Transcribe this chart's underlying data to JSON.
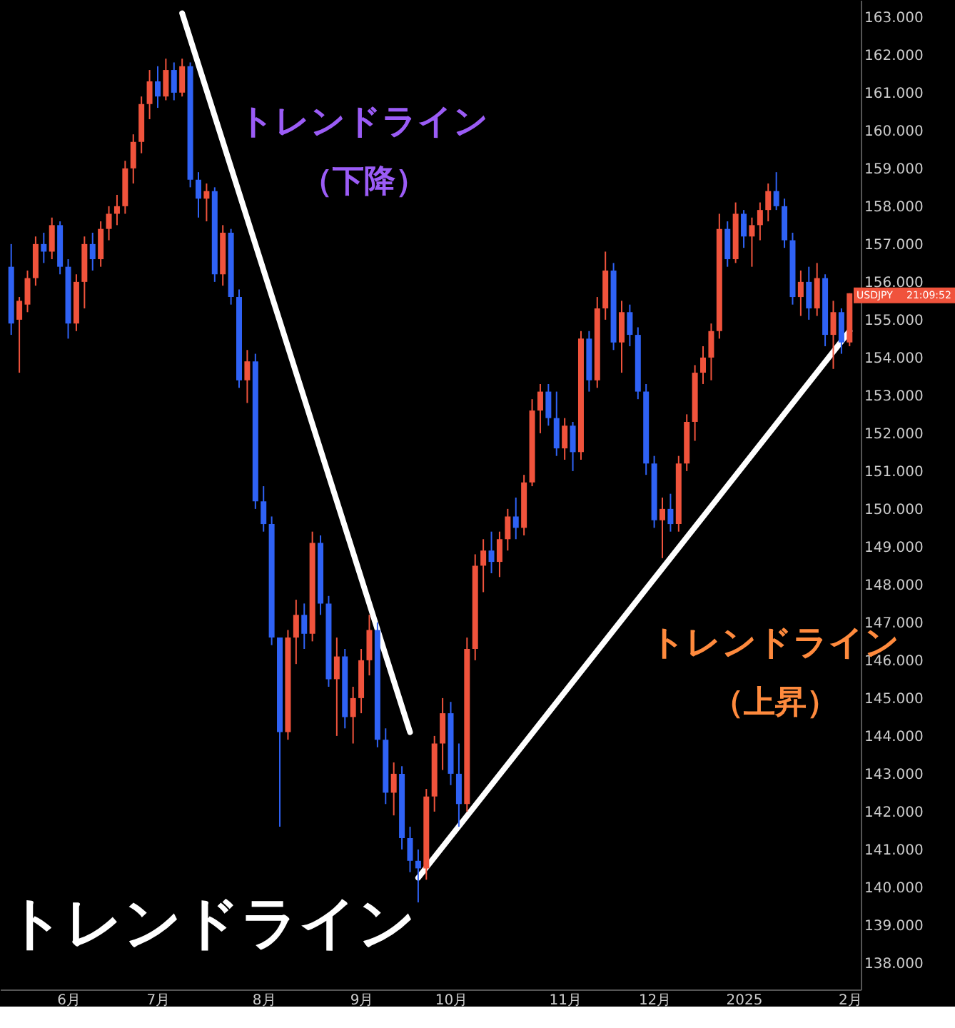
{
  "chart_data": {
    "type": "candlestick",
    "categories": [
      null,
      null,
      null,
      null,
      null,
      null,
      null,
      "6月",
      null,
      null,
      null,
      null,
      null,
      null,
      null,
      null,
      null,
      null,
      "7月",
      null,
      null,
      null,
      null,
      null,
      null,
      null,
      null,
      null,
      null,
      null,
      null,
      "8月",
      null,
      null,
      null,
      null,
      null,
      null,
      null,
      null,
      null,
      null,
      null,
      "9月",
      null,
      null,
      null,
      null,
      null,
      null,
      null,
      null,
      null,
      null,
      "10月",
      null,
      null,
      null,
      null,
      null,
      null,
      null,
      null,
      null,
      null,
      null,
      null,
      null,
      "11月",
      null,
      null,
      null,
      null,
      null,
      null,
      null,
      null,
      null,
      null,
      "12月",
      null,
      null,
      null,
      null,
      null,
      null,
      null,
      null,
      null,
      null,
      "2025",
      null,
      null,
      null,
      null,
      null,
      null,
      null,
      null,
      null,
      null,
      null,
      null,
      "2月"
    ],
    "ohlc": [
      [
        156.4,
        157.0,
        154.6,
        154.9
      ],
      [
        155.0,
        155.6,
        153.6,
        155.5
      ],
      [
        155.4,
        156.3,
        155.2,
        156.1
      ],
      [
        156.1,
        157.2,
        155.9,
        157.0
      ],
      [
        157.0,
        157.3,
        156.5,
        156.8
      ],
      [
        156.8,
        157.7,
        156.6,
        157.5
      ],
      [
        157.5,
        157.6,
        156.2,
        156.4
      ],
      [
        156.4,
        156.6,
        154.5,
        154.9
      ],
      [
        154.9,
        156.2,
        154.7,
        156.0
      ],
      [
        156.0,
        157.2,
        155.3,
        157.0
      ],
      [
        157.0,
        157.3,
        156.3,
        156.6
      ],
      [
        156.6,
        157.6,
        156.4,
        157.4
      ],
      [
        157.4,
        158.0,
        157.1,
        157.8
      ],
      [
        157.8,
        158.3,
        157.5,
        158.0
      ],
      [
        158.0,
        159.2,
        157.8,
        159.0
      ],
      [
        159.0,
        159.9,
        158.6,
        159.7
      ],
      [
        159.7,
        160.9,
        159.4,
        160.7
      ],
      [
        160.7,
        161.6,
        160.3,
        161.3
      ],
      [
        161.3,
        161.7,
        160.6,
        160.9
      ],
      [
        160.9,
        161.9,
        160.8,
        161.6
      ],
      [
        161.6,
        161.8,
        160.8,
        161.0
      ],
      [
        161.0,
        161.9,
        160.9,
        161.7
      ],
      [
        161.7,
        161.8,
        158.5,
        158.7
      ],
      [
        158.7,
        158.9,
        157.7,
        158.2
      ],
      [
        158.2,
        158.6,
        157.6,
        158.4
      ],
      [
        158.4,
        158.5,
        156.0,
        156.2
      ],
      [
        156.2,
        157.5,
        155.9,
        157.3
      ],
      [
        157.3,
        157.4,
        155.4,
        155.6
      ],
      [
        155.6,
        155.8,
        153.2,
        153.4
      ],
      [
        153.4,
        154.2,
        152.8,
        153.9
      ],
      [
        153.9,
        154.1,
        150.0,
        150.2
      ],
      [
        150.2,
        150.6,
        149.4,
        149.6
      ],
      [
        149.6,
        149.8,
        146.4,
        146.6
      ],
      [
        146.6,
        146.6,
        141.6,
        144.1
      ],
      [
        144.1,
        146.8,
        143.9,
        146.6
      ],
      [
        146.6,
        147.6,
        145.9,
        147.2
      ],
      [
        147.2,
        147.5,
        146.3,
        146.7
      ],
      [
        146.7,
        149.4,
        146.5,
        149.1
      ],
      [
        149.1,
        149.3,
        147.2,
        147.5
      ],
      [
        147.5,
        147.7,
        145.3,
        145.5
      ],
      [
        145.5,
        146.6,
        144.0,
        146.1
      ],
      [
        146.1,
        146.3,
        144.2,
        144.5
      ],
      [
        144.5,
        145.3,
        143.8,
        145.0
      ],
      [
        145.0,
        146.3,
        144.6,
        146.0
      ],
      [
        146.0,
        147.2,
        145.6,
        146.8
      ],
      [
        146.8,
        147.0,
        143.7,
        143.9
      ],
      [
        143.9,
        144.2,
        142.2,
        142.5
      ],
      [
        142.5,
        143.3,
        141.9,
        143.0
      ],
      [
        143.0,
        143.2,
        141.0,
        141.3
      ],
      [
        141.3,
        141.6,
        140.4,
        140.7
      ],
      [
        140.7,
        141.0,
        139.6,
        140.5
      ],
      [
        140.5,
        142.6,
        140.2,
        142.4
      ],
      [
        142.4,
        144.0,
        142.0,
        143.8
      ],
      [
        143.8,
        145.0,
        143.1,
        144.6
      ],
      [
        144.6,
        144.9,
        142.7,
        143.0
      ],
      [
        143.0,
        143.8,
        141.6,
        142.2
      ],
      [
        142.2,
        146.6,
        142.0,
        146.3
      ],
      [
        146.3,
        148.8,
        146.0,
        148.5
      ],
      [
        148.5,
        149.2,
        147.8,
        148.9
      ],
      [
        148.9,
        149.4,
        148.3,
        148.6
      ],
      [
        148.6,
        149.4,
        148.2,
        149.2
      ],
      [
        149.2,
        150.0,
        148.9,
        149.8
      ],
      [
        149.8,
        150.3,
        149.2,
        149.5
      ],
      [
        149.5,
        150.9,
        149.3,
        150.7
      ],
      [
        150.7,
        152.9,
        150.6,
        152.6
      ],
      [
        152.6,
        153.3,
        152.0,
        153.1
      ],
      [
        153.1,
        153.3,
        152.2,
        152.4
      ],
      [
        152.4,
        153.1,
        151.4,
        151.6
      ],
      [
        151.6,
        152.4,
        151.3,
        152.2
      ],
      [
        152.2,
        152.3,
        151.0,
        151.5
      ],
      [
        151.5,
        154.7,
        151.3,
        154.5
      ],
      [
        154.5,
        154.7,
        153.1,
        153.4
      ],
      [
        153.4,
        155.6,
        153.2,
        155.3
      ],
      [
        155.3,
        156.8,
        155.0,
        156.3
      ],
      [
        156.3,
        156.5,
        154.2,
        154.4
      ],
      [
        154.4,
        155.5,
        153.6,
        155.2
      ],
      [
        155.2,
        155.4,
        154.3,
        154.6
      ],
      [
        154.6,
        154.8,
        152.9,
        153.1
      ],
      [
        153.1,
        153.3,
        150.9,
        151.2
      ],
      [
        151.2,
        151.4,
        149.5,
        149.7
      ],
      [
        149.7,
        150.3,
        148.7,
        150.0
      ],
      [
        150.0,
        150.4,
        149.4,
        149.6
      ],
      [
        149.6,
        151.4,
        149.4,
        151.2
      ],
      [
        151.2,
        152.5,
        151.0,
        152.3
      ],
      [
        152.3,
        153.8,
        151.8,
        153.6
      ],
      [
        153.6,
        154.3,
        153.3,
        154.0
      ],
      [
        154.0,
        154.9,
        153.4,
        154.7
      ],
      [
        154.7,
        157.8,
        154.5,
        157.4
      ],
      [
        157.4,
        157.6,
        156.4,
        156.6
      ],
      [
        156.6,
        158.1,
        156.5,
        157.8
      ],
      [
        157.8,
        157.9,
        156.9,
        157.2
      ],
      [
        157.2,
        157.7,
        156.4,
        157.5
      ],
      [
        157.5,
        158.1,
        157.1,
        157.9
      ],
      [
        157.9,
        158.6,
        157.6,
        158.4
      ],
      [
        158.4,
        158.9,
        157.9,
        158.0
      ],
      [
        158.0,
        158.2,
        156.9,
        157.1
      ],
      [
        157.1,
        157.3,
        155.4,
        155.6
      ],
      [
        155.6,
        156.3,
        155.1,
        156.0
      ],
      [
        156.0,
        156.4,
        155.0,
        155.3
      ],
      [
        155.3,
        156.5,
        155.1,
        156.1
      ],
      [
        156.1,
        156.2,
        154.3,
        154.6
      ],
      [
        154.6,
        155.5,
        153.7,
        155.2
      ],
      [
        155.2,
        155.3,
        154.1,
        154.4
      ],
      [
        154.4,
        155.7,
        154.3,
        155.7
      ]
    ],
    "colors": [
      "#2f62f5",
      "#f0533c",
      "#f0533c",
      "#f0533c",
      "#2f62f5",
      "#f0533c",
      "#2f62f5",
      "#2f62f5",
      "#f0533c",
      "#f0533c",
      "#2f62f5",
      "#f0533c",
      "#f0533c",
      "#f0533c",
      "#f0533c",
      "#f0533c",
      "#f0533c",
      "#f0533c",
      "#2f62f5",
      "#f0533c",
      "#2f62f5",
      "#f0533c",
      "#2f62f5",
      "#2f62f5",
      "#f0533c",
      "#2f62f5",
      "#f0533c",
      "#2f62f5",
      "#2f62f5",
      "#f0533c",
      "#2f62f5",
      "#2f62f5",
      "#2f62f5",
      "#2f62f5",
      "#f0533c",
      "#f0533c",
      "#2f62f5",
      "#f0533c",
      "#2f62f5",
      "#2f62f5",
      "#f0533c",
      "#2f62f5",
      "#f0533c",
      "#f0533c",
      "#f0533c",
      "#2f62f5",
      "#2f62f5",
      "#f0533c",
      "#2f62f5",
      "#2f62f5",
      "#2f62f5",
      "#f0533c",
      "#f0533c",
      "#f0533c",
      "#2f62f5",
      "#2f62f5",
      "#f0533c",
      "#f0533c",
      "#f0533c",
      "#2f62f5",
      "#f0533c",
      "#f0533c",
      "#2f62f5",
      "#f0533c",
      "#f0533c",
      "#f0533c",
      "#2f62f5",
      "#2f62f5",
      "#f0533c",
      "#2f62f5",
      "#f0533c",
      "#2f62f5",
      "#f0533c",
      "#f0533c",
      "#2f62f5",
      "#f0533c",
      "#2f62f5",
      "#2f62f5",
      "#2f62f5",
      "#2f62f5",
      "#f0533c",
      "#2f62f5",
      "#f0533c",
      "#f0533c",
      "#f0533c",
      "#f0533c",
      "#f0533c",
      "#f0533c",
      "#2f62f5",
      "#f0533c",
      "#2f62f5",
      "#f0533c",
      "#f0533c",
      "#f0533c",
      "#2f62f5",
      "#2f62f5",
      "#2f62f5",
      "#f0533c",
      "#2f62f5",
      "#f0533c",
      "#2f62f5",
      "#f0533c",
      "#2f62f5",
      "#f0533c"
    ],
    "series": [
      {
        "type": "line",
        "color": "#ffffff",
        "values": [
          null,
          null,
          null,
          null,
          null,
          null,
          null,
          null,
          null,
          null,
          null,
          null,
          null,
          null,
          null,
          null,
          null,
          null,
          null,
          null,
          null,
          163.1,
          null,
          null,
          null,
          null,
          null,
          null,
          null,
          null,
          null,
          null,
          null,
          null,
          null,
          null,
          null,
          null,
          null,
          null,
          null,
          null,
          null,
          null,
          null,
          null,
          null,
          null,
          null,
          144.1,
          null,
          null,
          null,
          null,
          null,
          null,
          null,
          null,
          null,
          null,
          null,
          null,
          null,
          null,
          null,
          null,
          null,
          null,
          null,
          null,
          null,
          null,
          null,
          null,
          null,
          null,
          null,
          null,
          null,
          null,
          null,
          null,
          null,
          null,
          null,
          null,
          null,
          null,
          null,
          null,
          null,
          null,
          null,
          null,
          null,
          null,
          null,
          null,
          null,
          null,
          null,
          null,
          null,
          null
        ]
      },
      {
        "type": "line",
        "color": "#ffffff",
        "values": [
          null,
          null,
          null,
          null,
          null,
          null,
          null,
          null,
          null,
          null,
          null,
          null,
          null,
          null,
          null,
          null,
          null,
          null,
          null,
          null,
          null,
          null,
          null,
          null,
          null,
          null,
          null,
          null,
          null,
          null,
          null,
          null,
          null,
          null,
          null,
          null,
          null,
          null,
          null,
          null,
          null,
          null,
          null,
          null,
          null,
          null,
          null,
          null,
          null,
          null,
          140.25,
          null,
          null,
          null,
          null,
          null,
          null,
          null,
          null,
          null,
          null,
          null,
          null,
          null,
          null,
          null,
          null,
          null,
          null,
          null,
          null,
          null,
          null,
          null,
          null,
          null,
          null,
          null,
          null,
          null,
          null,
          null,
          null,
          null,
          null,
          null,
          null,
          null,
          null,
          null,
          null,
          null,
          null,
          null,
          null,
          null,
          null,
          null,
          null,
          null,
          null,
          null,
          null,
          154.7
        ]
      }
    ],
    "ylim": [
      137.3,
      163.45
    ],
    "yticks": [
      {
        "value": 138,
        "label": "138.000"
      },
      {
        "value": 139,
        "label": "139.000"
      },
      {
        "value": 140,
        "label": "140.000"
      },
      {
        "value": 141,
        "label": "141.000"
      },
      {
        "value": 142,
        "label": "142.000"
      },
      {
        "value": 143,
        "label": "143.000"
      },
      {
        "value": 144,
        "label": "144.000"
      },
      {
        "value": 145,
        "label": "145.000"
      },
      {
        "value": 146,
        "label": "146.000"
      },
      {
        "value": 147,
        "label": "147.000"
      },
      {
        "value": 148,
        "label": "148.000"
      },
      {
        "value": 149,
        "label": "149.000"
      },
      {
        "value": 150,
        "label": "150.000"
      },
      {
        "value": 151,
        "label": "151.000"
      },
      {
        "value": 152,
        "label": "152.000"
      },
      {
        "value": 153,
        "label": "153.000"
      },
      {
        "value": 154,
        "label": "154.000"
      },
      {
        "value": 155,
        "label": "155.000"
      },
      {
        "value": 156,
        "label": "156.000"
      },
      {
        "value": 157,
        "label": "157.000"
      },
      {
        "value": 158,
        "label": "158.000"
      },
      {
        "value": 159,
        "label": "159.000"
      },
      {
        "value": 160,
        "label": "160.000"
      },
      {
        "value": 161,
        "label": "161.000"
      },
      {
        "value": 162,
        "label": "162.000"
      },
      {
        "value": 163,
        "label": "163.000"
      }
    ],
    "grid": false,
    "annotations": [
      "トレンドライン",
      "（下降）",
      "トレンドライン",
      "（上昇）",
      "トレンドライン",
      "USDJPY",
      "21:09:52"
    ]
  }
}
